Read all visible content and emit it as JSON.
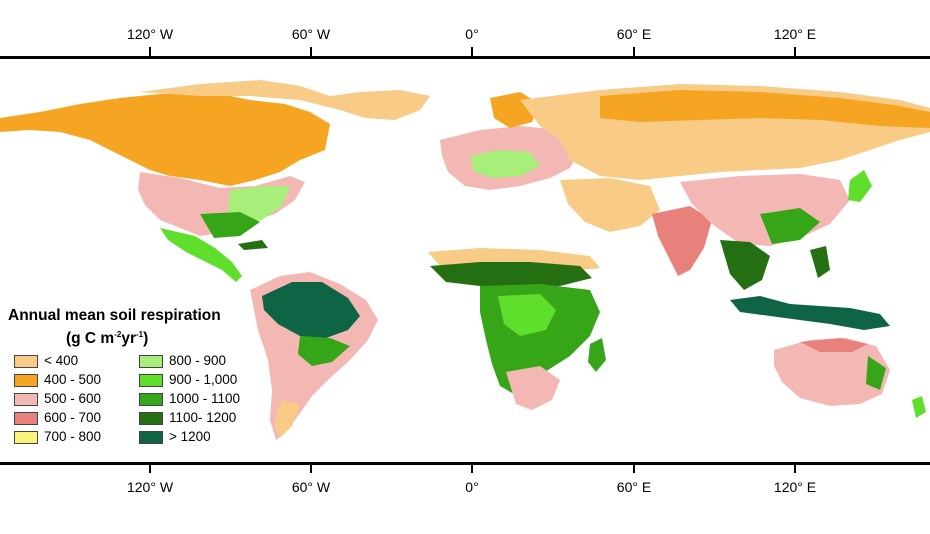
{
  "map": {
    "longitude_labels": [
      "120° W",
      "60° W",
      "0°",
      "60° E",
      "120° E"
    ],
    "colors": {
      "ocean": "#ffffff",
      "frame": "#000000"
    }
  },
  "legend": {
    "title_line1": "Annual mean soil respiration",
    "title_line2_prefix": "(g C m",
    "title_line2_sup1": "-2",
    "title_line2_mid": "yr",
    "title_line2_sup2": "-1",
    "title_line2_suffix": ")",
    "classes": [
      {
        "label": "< 400",
        "color": "#f8cb86"
      },
      {
        "label": "400 - 500",
        "color": "#f5a522"
      },
      {
        "label": "500 - 600",
        "color": "#f4b8b4"
      },
      {
        "label": "600 - 700",
        "color": "#e8807c"
      },
      {
        "label": "700 - 800",
        "color": "#fbf37b"
      },
      {
        "label": "800 - 900",
        "color": "#a8ee7a"
      },
      {
        "label": "900 - 1,000",
        "color": "#5fde2c"
      },
      {
        "label": "1000 - 1100",
        "color": "#37a518"
      },
      {
        "label": "1100- 1200",
        "color": "#246f12"
      },
      {
        "label": "> 1200",
        "color": "#0e6444"
      }
    ]
  }
}
